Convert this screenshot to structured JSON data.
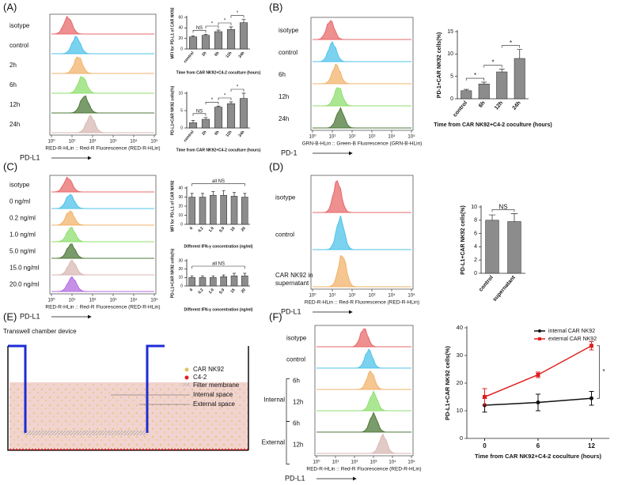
{
  "panel_labels": [
    "(A)",
    "(B)",
    "(C)",
    "(D)",
    "(E)",
    "(F)"
  ],
  "flow": [
    {
      "rows": [
        {
          "label": "isotype",
          "color": "#e8696b"
        },
        {
          "label": "control",
          "color": "#4fc3ea"
        },
        {
          "label": "2h",
          "color": "#f2b36b"
        },
        {
          "label": "6h",
          "color": "#8fdf6f"
        },
        {
          "label": "12h",
          "color": "#4e7a3a"
        },
        {
          "label": "24h",
          "color": "#d8b8b4"
        }
      ],
      "xlabel": "RED-R-HLin :: Red-R Fluorescence (RED-R-HLin)",
      "marker": "PD-L1",
      "xticks": [
        "10⁰",
        "10¹",
        "10²",
        "10³",
        "10⁴",
        "10⁵"
      ]
    },
    {
      "rows": [
        {
          "label": "isotype",
          "color": "#e8696b"
        },
        {
          "label": "control",
          "color": "#4fc3ea"
        },
        {
          "label": "6h",
          "color": "#f2b36b"
        },
        {
          "label": "12h",
          "color": "#8fdf6f"
        },
        {
          "label": "24h",
          "color": "#4e7a3a"
        }
      ],
      "xlabel": "GRN-B-HLin :: Green-B Fluorescence (GRN-B-HLin)",
      "marker": "PD-1",
      "xticks": [
        "10⁰",
        "10¹",
        "10²",
        "10³",
        "10⁴",
        "10⁵"
      ]
    },
    {
      "rows": [
        {
          "label": "isotype",
          "color": "#e8696b"
        },
        {
          "label": "0 ng/ml",
          "color": "#4fc3ea"
        },
        {
          "label": "0.2 ng/ml",
          "color": "#f2b36b"
        },
        {
          "label": "1.0 ng/ml",
          "color": "#8fdf6f"
        },
        {
          "label": "5.0 ng/ml",
          "color": "#4e7a3a"
        },
        {
          "label": "15.0 ng/ml",
          "color": "#d8b8b4"
        },
        {
          "label": "20.0 ng/ml",
          "color": "#b36be0"
        }
      ],
      "xlabel": "RED-R-HLin :: Red-R Fluorescence (RED-R-HLin)",
      "marker": "PD-L1",
      "xticks": [
        "10⁰",
        "10¹",
        "10²",
        "10³",
        "10⁴",
        "10⁵"
      ]
    },
    {
      "rows": [
        {
          "label": "isotype",
          "color": "#e8696b"
        },
        {
          "label": "control",
          "color": "#4fc3ea"
        },
        {
          "label": "CAR NK92 in",
          "label2": "supernatant",
          "color": "#f2b36b"
        }
      ],
      "xlabel": "RED-R-HLin :: Red-R Fluorescence (RED-R-HLin)",
      "marker": "PD-L1",
      "xticks": [
        "10⁰",
        "10¹",
        "10²",
        "10³",
        "10⁴",
        "10⁵"
      ]
    },
    {
      "rows": [
        {
          "label": "isotype",
          "color": "#e8696b"
        },
        {
          "label": "control",
          "color": "#4fc3ea"
        },
        {
          "group": "Internal",
          "rows": [
            {
              "label": "6h",
              "color": "#f2b36b"
            },
            {
              "label": "12h",
              "color": "#8fdf6f"
            }
          ]
        },
        {
          "group": "External",
          "rows": [
            {
              "label": "6h",
              "color": "#4e7a3a"
            },
            {
              "label": "12h",
              "color": "#d8b8b4"
            }
          ]
        }
      ],
      "xlabel": "RED-R-HLin :: Red-R Fluorescence (RED-R-HLin)",
      "marker": "PD-L1",
      "xticks": [
        "10⁰",
        "10¹",
        "10²",
        "10³",
        "10⁴",
        "10⁵"
      ]
    }
  ],
  "diagram": {
    "title": "Transwell chamber device",
    "legend": [
      "CAR NK92",
      "C4-2",
      "Filter membrane"
    ],
    "callouts": [
      "Internal space",
      "External space"
    ]
  },
  "chart_data": [
    {
      "type": "bar",
      "ylabel": "MFI for PD-L1 of CAR NK92",
      "xlabel": "Time from CAR NK92+C4-2 coculture (hours)",
      "categories": [
        "control",
        "2h",
        "6h",
        "12h",
        "24h"
      ],
      "values": [
        23,
        26,
        33,
        37,
        50
      ],
      "errors": [
        2,
        2,
        3,
        5,
        6
      ],
      "ylim": [
        0,
        60
      ],
      "yticks": [
        0,
        20,
        40,
        60
      ],
      "color": "#8c8c8c",
      "annotations": [
        "NS",
        "*",
        "*",
        "*"
      ]
    },
    {
      "type": "bar",
      "ylabel": "PD-L1+CAR NK92 cells(%)",
      "xlabel": "Time from CAR NK92+C4-2 coculture (hours)",
      "categories": [
        "control",
        "2h",
        "6h",
        "12h",
        "24h"
      ],
      "values": [
        1.5,
        2.5,
        6,
        7,
        8.5
      ],
      "errors": [
        0.7,
        0.5,
        0.3,
        0.5,
        1.5
      ],
      "ylim": [
        0,
        10
      ],
      "yticks": [
        0,
        5,
        10
      ],
      "color": "#8c8c8c",
      "annotations": [
        "NS",
        "*",
        "*",
        "*"
      ]
    },
    {
      "type": "bar",
      "ylabel": "PD-1+CAR NK92 cells(%)",
      "xlabel": "Time from CAR NK92+C4-2 coculture (hours)",
      "categories": [
        "control",
        "6h",
        "12h",
        "24h"
      ],
      "values": [
        1.8,
        3.3,
        6,
        9
      ],
      "errors": [
        0.3,
        0.4,
        0.6,
        2
      ],
      "ylim": [
        0,
        15
      ],
      "yticks": [
        0,
        5,
        10,
        15
      ],
      "color": "#8c8c8c",
      "annotations": [
        "*",
        "*",
        "*"
      ]
    },
    {
      "type": "bar",
      "ylabel": "MFI for PD-L1 of CAR NK92",
      "xlabel": "Different IFN-γ concentration (ng/ml)",
      "categories": [
        "0",
        "0.2",
        "1.0",
        "5.0",
        "15",
        "20"
      ],
      "values": [
        30,
        30,
        32,
        32,
        31,
        30
      ],
      "errors": [
        4,
        4,
        4,
        5,
        4,
        4
      ],
      "ylim": [
        0,
        40
      ],
      "yticks": [
        0,
        10,
        20,
        30,
        40
      ],
      "color": "#8c8c8c",
      "annotations": [
        "all NS"
      ]
    },
    {
      "type": "bar",
      "ylabel": "PD-L1+CAR NK92 cells(%)",
      "xlabel": "Different IFN-γ concentration (ng/ml)",
      "categories": [
        "0",
        "0.2",
        "1.0",
        "5.0",
        "15",
        "20"
      ],
      "values": [
        10,
        10,
        10,
        11,
        12,
        12
      ],
      "errors": [
        2,
        2,
        2,
        2,
        3,
        3
      ],
      "ylim": [
        0,
        30
      ],
      "yticks": [
        0,
        10,
        20,
        30
      ],
      "color": "#8c8c8c",
      "annotations": [
        "all NS"
      ]
    },
    {
      "type": "bar",
      "ylabel": "PD-L1+CAR NK92 cells(%)",
      "categories": [
        "control",
        "supernatant"
      ],
      "values": [
        8,
        7.8
      ],
      "errors": [
        0.8,
        1.2
      ],
      "ylim": [
        0,
        10
      ],
      "yticks": [
        0,
        2,
        4,
        6,
        8,
        10
      ],
      "color": "#8c8c8c",
      "annotations": [
        "NS"
      ]
    },
    {
      "type": "line",
      "ylabel": "PD-L1+CAR NK92 cells(%)",
      "xlabel": "Time from CAR NK92+C4-2 coculture (hours)",
      "x": [
        0,
        6,
        12
      ],
      "xlim": [
        -2,
        14
      ],
      "xticks": [
        0,
        6,
        12
      ],
      "ylim": [
        0,
        40
      ],
      "yticks": [
        0,
        10,
        20,
        30,
        40
      ],
      "legend": "upper right",
      "annotations": [
        "*"
      ],
      "series": [
        {
          "name": "internal CAR NK92",
          "color": "#111111",
          "values": [
            12,
            13,
            14.5
          ],
          "errors": [
            2.5,
            3,
            2.5
          ]
        },
        {
          "name": "external CAR NK92",
          "color": "#e02020",
          "values": [
            15,
            23,
            33.5
          ],
          "errors": [
            3,
            1,
            1.5
          ]
        }
      ]
    }
  ]
}
